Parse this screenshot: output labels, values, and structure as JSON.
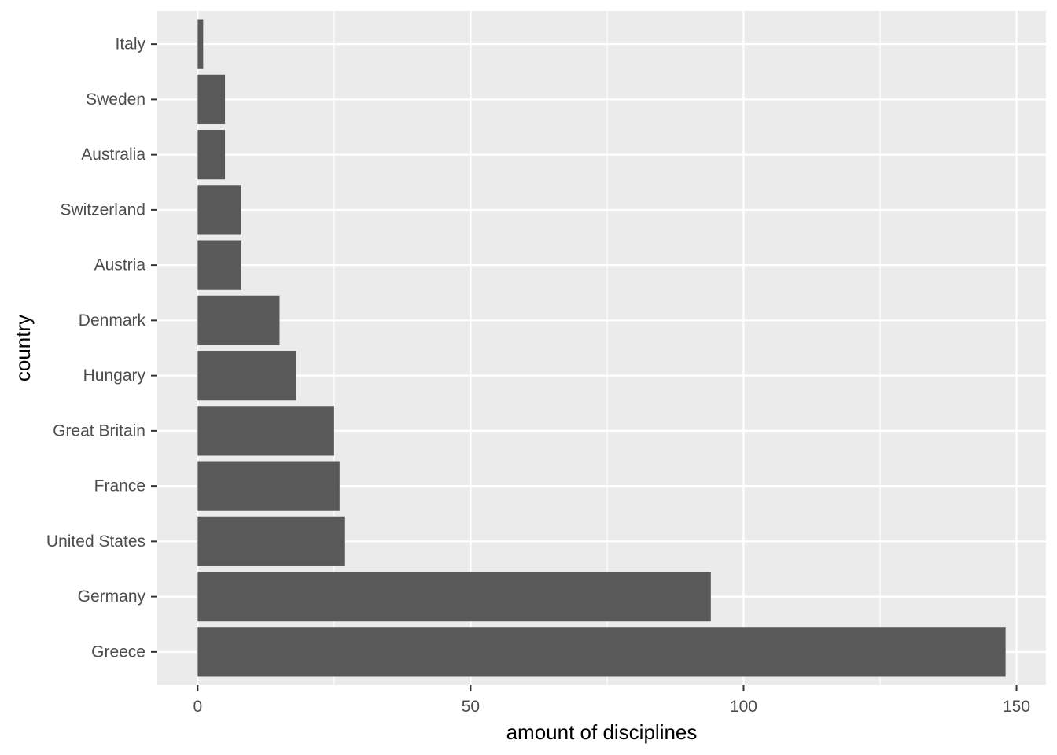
{
  "chart_data": {
    "type": "bar",
    "orientation": "horizontal",
    "title": "",
    "xlabel": "amount of disciplines",
    "ylabel": "country",
    "categories": [
      "Greece",
      "Germany",
      "United States",
      "France",
      "Great Britain",
      "Hungary",
      "Denmark",
      "Austria",
      "Switzerland",
      "Australia",
      "Sweden",
      "Italy"
    ],
    "values": [
      148,
      94,
      27,
      26,
      25,
      18,
      15,
      8,
      8,
      5,
      5,
      1
    ],
    "xlim": [
      -7.4,
      155.4
    ],
    "xticks": [
      0,
      50,
      100,
      150
    ],
    "xtick_labels": [
      "0",
      "50",
      "100",
      "150"
    ],
    "grid": true,
    "legend": "none",
    "colors": {
      "bar": "#595959",
      "panel_background": "#EBEBEB",
      "grid_major": "#FFFFFF",
      "tick_label": "#4D4D4D",
      "tick_mark": "#333333",
      "axis_title": "#000000"
    }
  }
}
